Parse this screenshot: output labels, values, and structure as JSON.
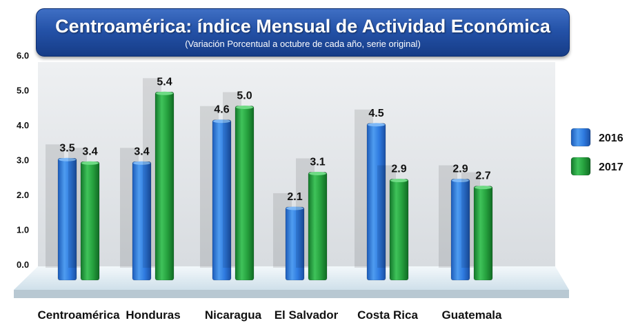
{
  "chart_data": {
    "type": "bar",
    "title": "Centroamérica: índice Mensual de Actividad Económica",
    "subtitle": "(Variación Porcentual a octubre de cada año, serie original)",
    "categories": [
      "Centroamérica",
      "Honduras",
      "Nicaragua",
      "El Salvador",
      "Costa Rica",
      "Guatemala"
    ],
    "series": [
      {
        "name": "2016",
        "color": "#2f79d8",
        "values": [
          3.5,
          3.4,
          4.6,
          2.1,
          4.5,
          2.9
        ]
      },
      {
        "name": "2017",
        "color": "#26a13e",
        "values": [
          3.4,
          5.4,
          5.0,
          3.1,
          2.9,
          2.7
        ]
      }
    ],
    "value_labels": [
      [
        "3.5",
        "3.4",
        "4.6",
        "2.1",
        "4.5",
        "2.9"
      ],
      [
        "3.4",
        "5.4",
        "5.0",
        "3.1",
        "2.9",
        "2.7"
      ]
    ],
    "yticks": [
      "0.0",
      "1.0",
      "2.0",
      "3.0",
      "4.0",
      "5.0",
      "6.0"
    ],
    "ylim": [
      0,
      6
    ],
    "xlabel": "",
    "ylabel": "",
    "legend": "right"
  }
}
